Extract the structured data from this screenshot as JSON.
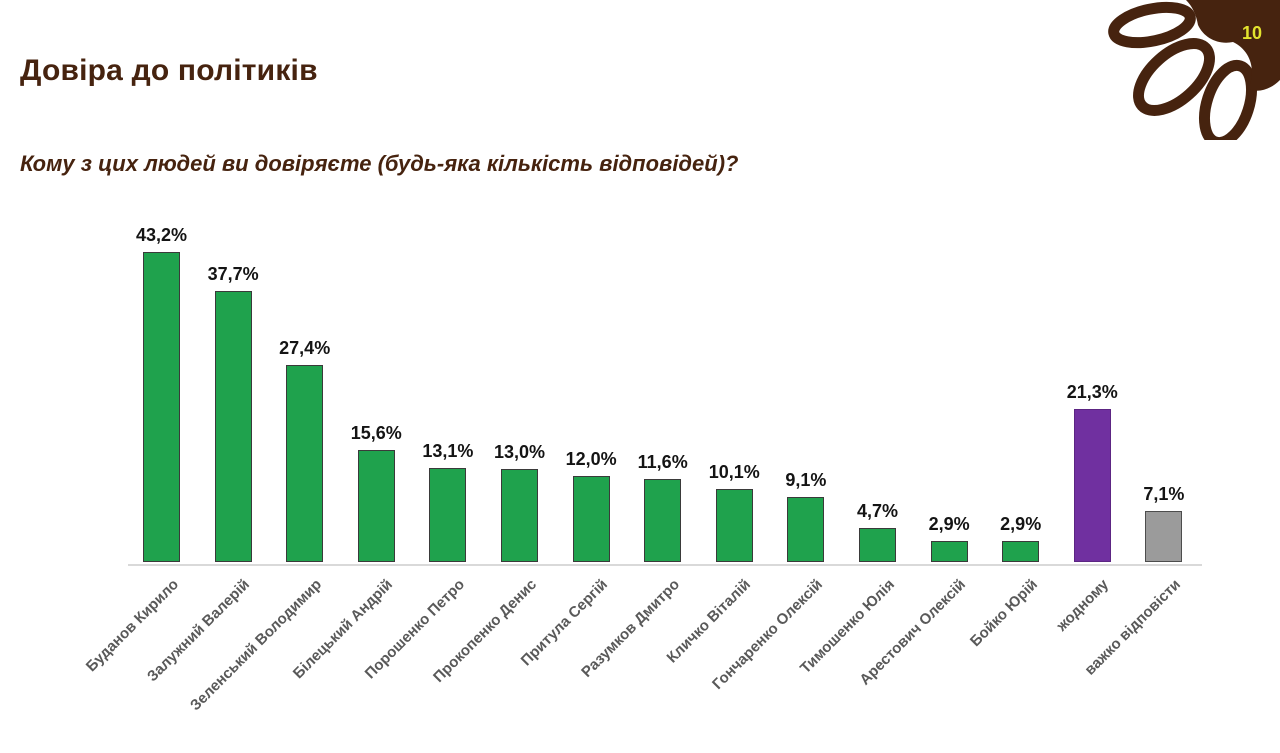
{
  "slide": {
    "title": "Довіра до політиків",
    "page_number": "10"
  },
  "theme": {
    "brand_brown": "#46230f",
    "page_number_yellow": "#e3e32e",
    "bar_green": "#1fa24d",
    "bar_green_border": "#3a3a3a",
    "bar_purple": "#7030a0",
    "bar_purple_border": "#5c2583",
    "bar_gray": "#9b9b9b",
    "bar_gray_border": "#4d4d4d",
    "axis_gray": "#d9d9d9",
    "category_label_gray": "#595959",
    "value_label_black": "#141414"
  },
  "chart_data": {
    "type": "bar",
    "title": "Кому з цих людей ви довіряєте (будь-яка кількість відповідей)?",
    "categories": [
      "Буданов Кирило",
      "Залужний Валерій",
      "Зеленський Володимир",
      "Білецький Андрій",
      "Порошенко Петро",
      "Прокопенко Денис",
      "Притула Сергій",
      "Разумков Дмитро",
      "Кличко Віталій",
      "Гончаренко Олексій",
      "Тимошенко Юлія",
      "Арестович Олексій",
      "Бойко Юрій",
      "жодному",
      "важко відповісти"
    ],
    "values": [
      43.2,
      37.7,
      27.4,
      15.6,
      13.1,
      13.0,
      12.0,
      11.6,
      10.1,
      9.1,
      4.7,
      2.9,
      2.9,
      21.3,
      7.1
    ],
    "value_labels": [
      "43,2%",
      "37,7%",
      "27,4%",
      "15,6%",
      "13,1%",
      "13,0%",
      "12,0%",
      "11,6%",
      "10,1%",
      "9,1%",
      "4,7%",
      "2,9%",
      "2,9%",
      "21,3%",
      "7,1%"
    ],
    "bar_colors": [
      "#1fa24d",
      "#1fa24d",
      "#1fa24d",
      "#1fa24d",
      "#1fa24d",
      "#1fa24d",
      "#1fa24d",
      "#1fa24d",
      "#1fa24d",
      "#1fa24d",
      "#1fa24d",
      "#1fa24d",
      "#1fa24d",
      "#7030a0",
      "#9b9b9b"
    ],
    "bar_borders": [
      "#3a3a3a",
      "#3a3a3a",
      "#3a3a3a",
      "#3a3a3a",
      "#3a3a3a",
      "#3a3a3a",
      "#3a3a3a",
      "#3a3a3a",
      "#3a3a3a",
      "#3a3a3a",
      "#3a3a3a",
      "#3a3a3a",
      "#3a3a3a",
      "#5c2583",
      "#4d4d4d"
    ],
    "xlabel": "",
    "ylabel": "",
    "ylim": [
      0,
      45
    ],
    "grid": false,
    "legend": false,
    "x_axis_label_rotation_deg": -45
  }
}
